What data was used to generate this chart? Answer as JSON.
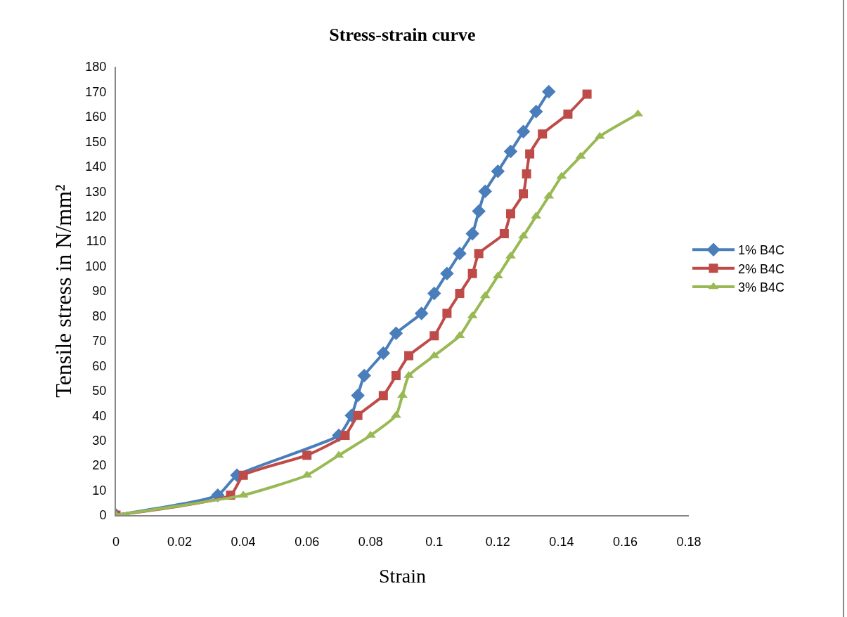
{
  "chart_data": {
    "type": "line",
    "title": "Stress-strain curve",
    "xlabel": "Strain",
    "ylabel": "Tensile stress in N/mm²",
    "xlim": [
      0,
      0.18
    ],
    "xticks": [
      {
        "value": 0,
        "label": "0"
      },
      0.02,
      0.04,
      0.06,
      0.08,
      0.1,
      0.12,
      0.14,
      0.16,
      0.18
    ],
    "ylim": [
      0,
      180
    ],
    "yticks": [
      0,
      10,
      20,
      30,
      40,
      50,
      60,
      70,
      80,
      90,
      100,
      110,
      120,
      130,
      140,
      150,
      160,
      170,
      180
    ],
    "grid": false,
    "legend": "right",
    "series": [
      {
        "name": "1% B4C",
        "color": "#4a7ebb",
        "marker": "diamond",
        "x": [
          0,
          0.032,
          0.038,
          0.06,
          0.07,
          0.074,
          0.076,
          0.078,
          0.084,
          0.088,
          0.096,
          0.1,
          0.104,
          0.108,
          0.112,
          0.114,
          0.116,
          0.12,
          0.124,
          0.128,
          0.132,
          0.136
        ],
        "values": [
          0,
          8,
          16,
          null,
          32,
          40,
          48,
          56,
          65,
          73,
          81,
          89,
          97,
          105,
          113,
          122,
          130,
          138,
          146,
          154,
          162,
          170
        ]
      },
      {
        "name": "2% B4C",
        "color": "#be4b48",
        "marker": "square",
        "x": [
          0,
          0.036,
          0.04,
          0.06,
          0.072,
          0.076,
          0.084,
          0.088,
          0.092,
          0.1,
          0.104,
          0.108,
          0.112,
          0.114,
          0.122,
          0.124,
          0.128,
          0.129,
          0.13,
          0.134,
          0.142,
          0.148
        ],
        "values": [
          0,
          8,
          16,
          24,
          32,
          40,
          48,
          56,
          64,
          72,
          81,
          89,
          97,
          105,
          113,
          121,
          129,
          137,
          145,
          153,
          161,
          169
        ]
      },
      {
        "name": "3% B4C",
        "color": "#98b954",
        "marker": "triangle",
        "x": [
          0,
          0.04,
          0.06,
          0.07,
          0.08,
          0.088,
          0.09,
          0.092,
          0.1,
          0.108,
          0.112,
          0.116,
          0.12,
          0.124,
          0.128,
          0.132,
          0.136,
          0.14,
          0.146,
          0.152,
          0.164
        ],
        "values": [
          0,
          8,
          16,
          24,
          32,
          40,
          48,
          56,
          64,
          72,
          80,
          88,
          96,
          104,
          112,
          120,
          128,
          136,
          144,
          152,
          161
        ]
      }
    ]
  }
}
